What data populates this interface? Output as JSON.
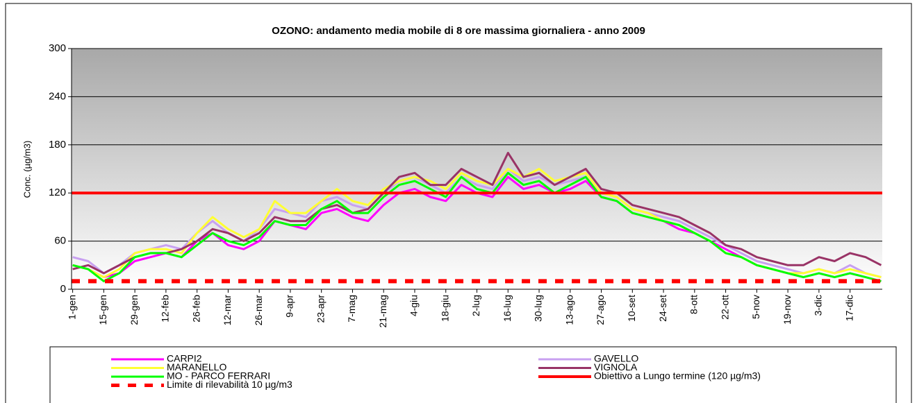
{
  "chart_data": {
    "type": "line",
    "title": "OZONO: andamento media mobile di 8 ore massima giornaliera -   anno 2009",
    "y_label": "Conc. (µg/m3)",
    "categories": [
      "1-gen",
      null,
      "15-gen",
      null,
      "29-gen",
      null,
      "12-feb",
      null,
      "26-feb",
      null,
      "12-mar",
      null,
      "26-mar",
      null,
      "9-apr",
      null,
      "23-apr",
      null,
      "7-mag",
      null,
      "21-mag",
      null,
      "4-giu",
      null,
      "18-giu",
      null,
      "2-lug",
      null,
      "16-lug",
      null,
      "30-lug",
      null,
      "13-ago",
      null,
      "27-ago",
      null,
      "10-set",
      null,
      "24-set",
      null,
      "8-ott",
      null,
      "22-ott",
      null,
      "5-nov",
      null,
      "19-nov",
      null,
      "3-dic",
      null,
      "17-dic",
      null,
      null
    ],
    "series": [
      {
        "name": "CARPI2",
        "color": "#ff00ff",
        "values": [
          30,
          25,
          15,
          20,
          35,
          40,
          45,
          40,
          60,
          70,
          55,
          50,
          60,
          85,
          80,
          75,
          95,
          100,
          90,
          85,
          105,
          120,
          125,
          115,
          110,
          130,
          120,
          115,
          140,
          125,
          130,
          120,
          125,
          135,
          115,
          110,
          95,
          90,
          85,
          75,
          70,
          60,
          50,
          40,
          30,
          25,
          20,
          15,
          20,
          15,
          20,
          15,
          10
        ]
      },
      {
        "name": "GAVELLO",
        "color": "#c8a0f0",
        "values": [
          40,
          35,
          20,
          30,
          45,
          50,
          55,
          50,
          70,
          85,
          70,
          60,
          75,
          100,
          95,
          90,
          110,
          115,
          105,
          100,
          120,
          135,
          140,
          130,
          120,
          140,
          130,
          125,
          150,
          135,
          140,
          130,
          135,
          140,
          120,
          115,
          100,
          95,
          90,
          85,
          75,
          65,
          55,
          45,
          35,
          30,
          25,
          20,
          25,
          20,
          30,
          20,
          15
        ]
      },
      {
        "name": "MARANELLO",
        "color": "#ffff33",
        "values": [
          30,
          25,
          15,
          25,
          45,
          50,
          50,
          45,
          70,
          90,
          75,
          65,
          75,
          110,
          95,
          95,
          110,
          125,
          110,
          105,
          125,
          135,
          140,
          135,
          125,
          145,
          135,
          130,
          150,
          140,
          150,
          135,
          140,
          145,
          120,
          115,
          100,
          95,
          85,
          80,
          70,
          60,
          45,
          40,
          30,
          25,
          20,
          20,
          25,
          20,
          25,
          20,
          15
        ]
      },
      {
        "name": "VIGNOLA",
        "color": "#993366",
        "values": [
          25,
          30,
          20,
          30,
          40,
          45,
          45,
          50,
          60,
          75,
          70,
          60,
          70,
          90,
          85,
          85,
          100,
          105,
          95,
          100,
          120,
          140,
          145,
          130,
          130,
          150,
          140,
          130,
          170,
          140,
          145,
          130,
          140,
          150,
          125,
          120,
          105,
          100,
          95,
          90,
          80,
          70,
          55,
          50,
          40,
          35,
          30,
          30,
          40,
          35,
          45,
          40,
          30
        ]
      },
      {
        "name": "MO - PARCO FERRARI",
        "color": "#00ff00",
        "values": [
          30,
          25,
          10,
          20,
          40,
          45,
          45,
          40,
          55,
          70,
          60,
          55,
          65,
          85,
          80,
          80,
          100,
          110,
          95,
          95,
          115,
          130,
          135,
          125,
          115,
          140,
          125,
          120,
          145,
          130,
          135,
          120,
          130,
          140,
          115,
          110,
          95,
          90,
          85,
          80,
          70,
          60,
          45,
          40,
          30,
          25,
          20,
          15,
          20,
          15,
          20,
          15,
          10
        ]
      }
    ],
    "reference_lines": [
      {
        "name": "Obiettivo a Lungo termine (120 µg/m3)",
        "value": 120,
        "color": "#ff0000",
        "dashed": false
      },
      {
        "name": "Limite di rilevabilità 10 µg/m3",
        "value": 10,
        "color": "#ff0000",
        "dashed": true
      }
    ],
    "ylim": [
      0,
      300
    ],
    "yticks": [
      0,
      60,
      120,
      180,
      240,
      300
    ],
    "grid": true
  }
}
